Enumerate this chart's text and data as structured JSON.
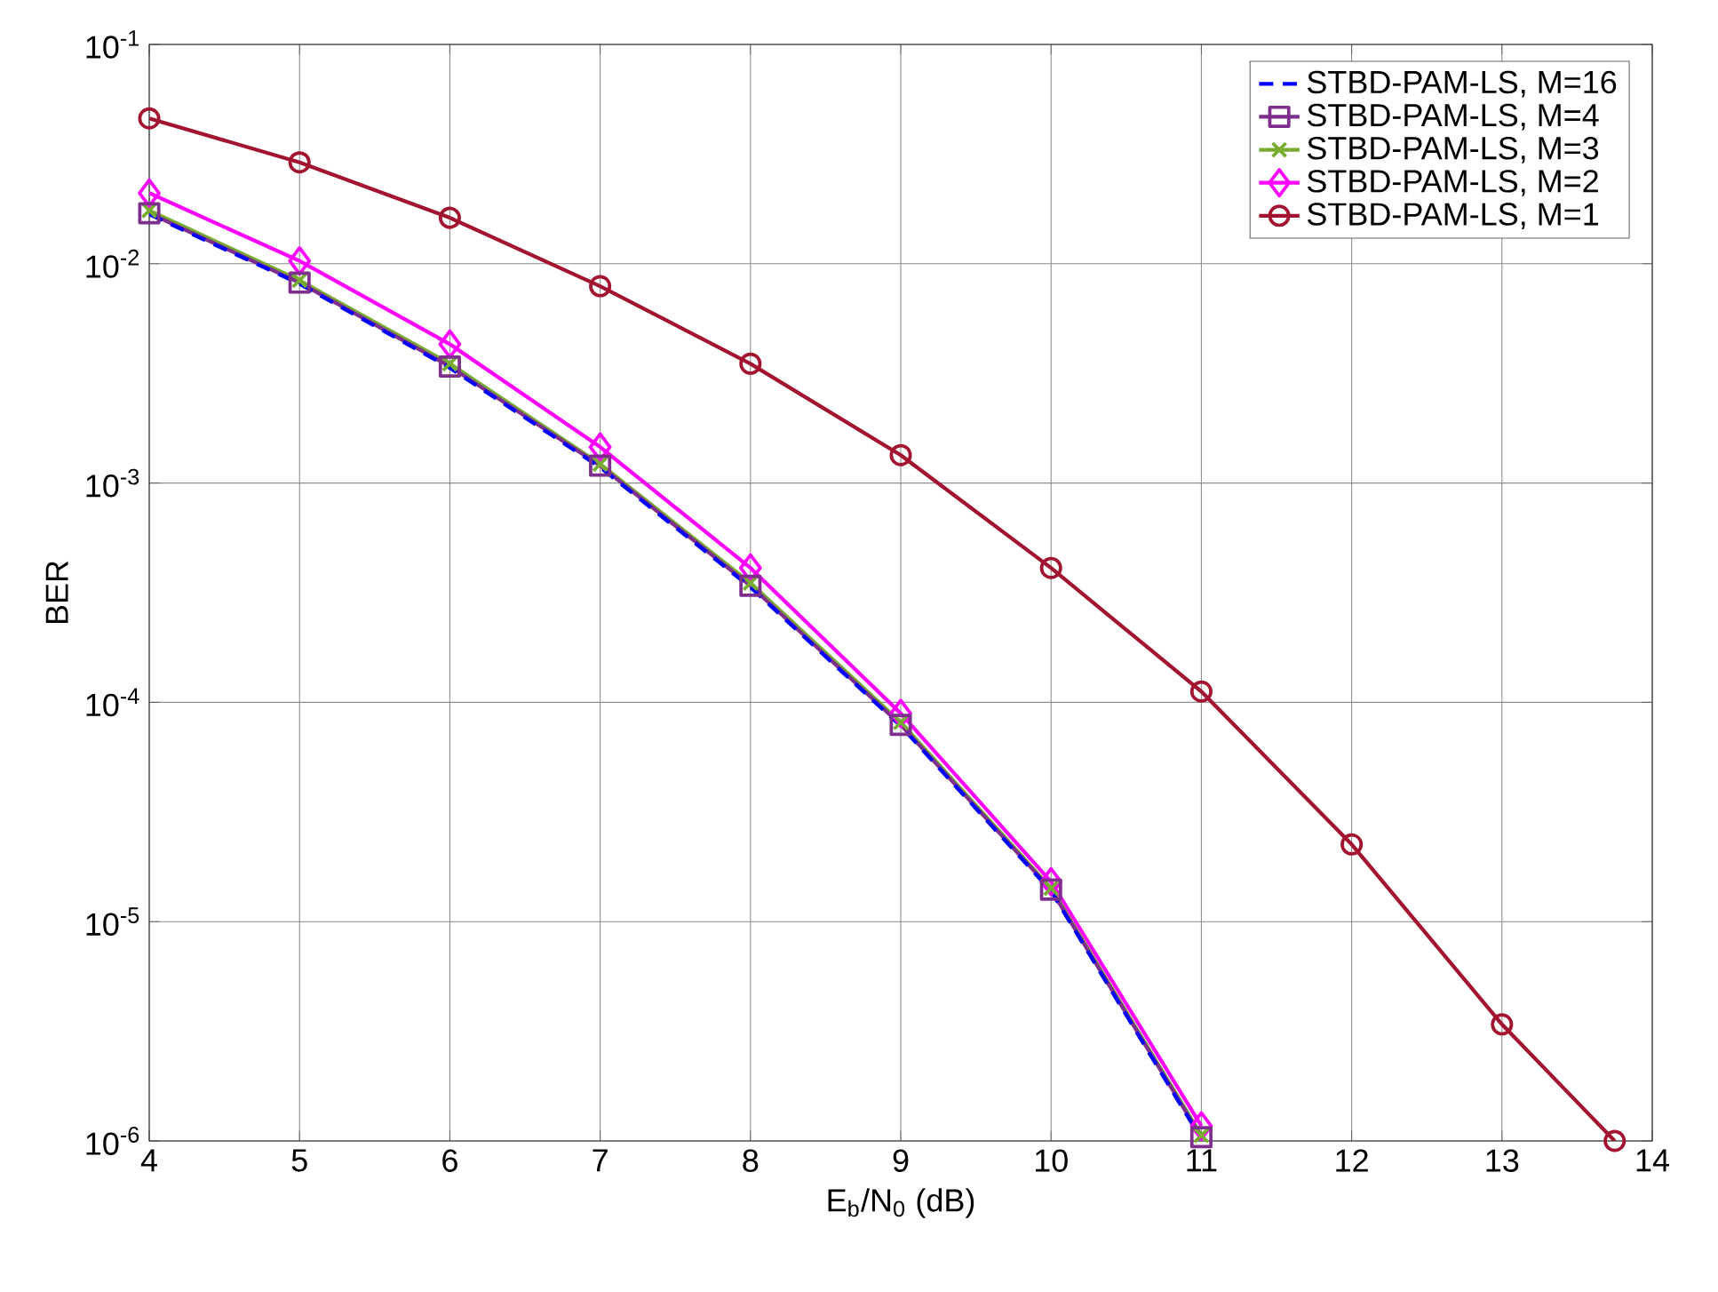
{
  "chart_data": {
    "type": "line",
    "xlabel": "E$_{b}$/N$_{0}$ (dB)",
    "ylabel": "BER",
    "xlim": [
      4,
      14
    ],
    "xticks": [
      4,
      5,
      6,
      7,
      8,
      9,
      10,
      11,
      12,
      13,
      14
    ],
    "ylim": [
      1e-06,
      0.1
    ],
    "yticks": [
      {
        "value": 1e-06,
        "label": "10$^{-6}$"
      },
      {
        "value": 1e-05,
        "label": "10$^{-5}$"
      },
      {
        "value": 0.0001,
        "label": "10$^{-4}$"
      },
      {
        "value": 0.001,
        "label": "10$^{-3}$"
      },
      {
        "value": 0.01,
        "label": "10$^{-2}$"
      },
      {
        "value": 0.1,
        "label": "10$^{-1}$"
      }
    ],
    "log": "y",
    "grid": true,
    "legend": "top right",
    "series": [
      {
        "name": "STBD-PAM-LS, M=16",
        "color": "#0000ff",
        "marker": "none",
        "line_style": "dashed",
        "x": [
          4,
          5,
          6,
          7,
          8,
          9,
          10,
          11
        ],
        "values": [
          0.0168,
          0.0081,
          0.00335,
          0.00118,
          0.000335,
          7.8e-05,
          1.38e-05,
          1.02e-06
        ]
      },
      {
        "name": "STBD-PAM-LS, M=4",
        "color": "#7e2f8e",
        "marker": "square",
        "line_style": "solid",
        "x": [
          4,
          5,
          6,
          7,
          8,
          9,
          10,
          11
        ],
        "values": [
          0.017,
          0.0082,
          0.0034,
          0.0012,
          0.00034,
          7.9e-05,
          1.4e-05,
          1.04e-06
        ]
      },
      {
        "name": "STBD-PAM-LS, M=3",
        "color": "#77ac30",
        "marker": "cross",
        "line_style": "solid",
        "x": [
          4,
          5,
          6,
          7,
          8,
          9,
          10,
          11
        ],
        "values": [
          0.0175,
          0.0084,
          0.0035,
          0.00122,
          0.00035,
          8.1e-05,
          1.42e-05,
          1.06e-06
        ]
      },
      {
        "name": "STBD-PAM-LS, M=2",
        "color": "#ff00ff",
        "marker": "diamond",
        "line_style": "solid",
        "x": [
          4,
          5,
          6,
          7,
          8,
          9,
          10,
          11
        ],
        "values": [
          0.021,
          0.0103,
          0.0043,
          0.00146,
          0.00041,
          8.9e-05,
          1.52e-05,
          1.17e-06
        ]
      },
      {
        "name": "STBD-PAM-LS, M=1",
        "color": "#a2142f",
        "marker": "circle",
        "line_style": "solid",
        "x": [
          4,
          5,
          6,
          7,
          8,
          9,
          10,
          11,
          12,
          13,
          13.75
        ],
        "values": [
          0.046,
          0.029,
          0.0162,
          0.0079,
          0.0035,
          0.00134,
          0.00041,
          0.000112,
          2.25e-05,
          3.4e-06,
          1e-06
        ]
      }
    ]
  }
}
